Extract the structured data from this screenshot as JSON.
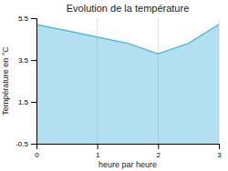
{
  "chart_data": {
    "type": "area",
    "title": "Evolution de la température",
    "xlabel": "heure par heure",
    "ylabel": "Température en °C",
    "x": [
      0,
      0.5,
      1,
      1.5,
      2,
      2.5,
      3
    ],
    "values": [
      5.2,
      4.9,
      4.6,
      4.3,
      3.8,
      4.3,
      5.2
    ],
    "xlim": [
      0,
      3
    ],
    "ylim": [
      -0.5,
      5.5
    ],
    "xticks": [
      0,
      1,
      2,
      3
    ],
    "yticks": [
      -0.5,
      1.5,
      3.5,
      5.5
    ],
    "color": "#55bbdd",
    "grid": "x"
  }
}
